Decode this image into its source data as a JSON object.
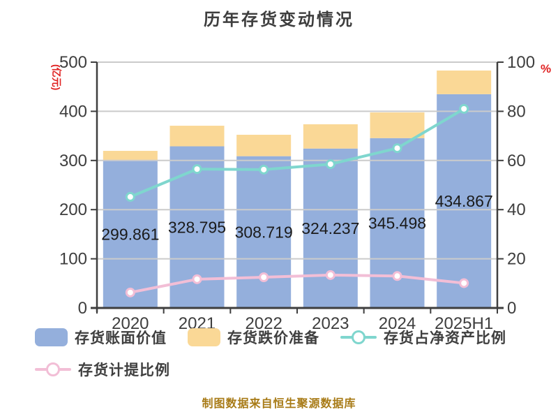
{
  "title": "历年存货变动情况",
  "footer": "制图数据来自恒生聚源数据库",
  "chart_data": {
    "type": "bar",
    "subtype": "stacked-bar-with-lines",
    "categories": [
      "2020",
      "2021",
      "2022",
      "2023",
      "2024",
      "2025H1"
    ],
    "series": [
      {
        "key": "inventory-book-value",
        "name": "存货账面价值",
        "type": "bar",
        "stack": true,
        "axis": "left",
        "color": "#94afdc",
        "values": [
          299.861,
          328.795,
          308.719,
          324.237,
          345.498,
          434.867
        ]
      },
      {
        "key": "inventory-depreciation-reserve",
        "name": "存货跌价准备",
        "type": "bar",
        "stack": true,
        "axis": "left",
        "color": "#fad896",
        "values": [
          19.7,
          41.9,
          43.6,
          49.4,
          52.2,
          48.1
        ]
      },
      {
        "key": "inventory-to-net-assets-ratio",
        "name": "存货占净资产比例",
        "type": "line",
        "axis": "right",
        "color": "#7fd6ce",
        "values": [
          45.2,
          56.5,
          56.3,
          58.5,
          65.0,
          81.0
        ]
      },
      {
        "key": "inventory-provision-ratio",
        "name": "存货计提比例",
        "type": "line",
        "axis": "right",
        "color": "#f2bed6",
        "values": [
          6.3,
          11.7,
          12.5,
          13.4,
          13.0,
          10.1
        ]
      }
    ],
    "bar_value_labels": [
      "299.861",
      "328.795",
      "308.719",
      "324.237",
      "345.498",
      "434.867"
    ],
    "left_axis": {
      "unit": "(亿元)",
      "min": 0,
      "max": 500,
      "ticks": [
        0,
        100,
        200,
        300,
        400,
        500
      ]
    },
    "right_axis": {
      "unit": "%",
      "min": 0,
      "max": 100,
      "ticks": [
        0,
        20,
        40,
        60,
        80,
        100
      ]
    },
    "grid": true,
    "legend_position": "bottom"
  },
  "colors": {
    "background": "#ffffff",
    "title": "#3e3e3e",
    "axis_text": "#3e3e3e",
    "axis_line": "#3e3e3e",
    "grid": "#cbcbcb",
    "value_label": "#1b1b1b",
    "unit_label": "#e02222",
    "legend_text": "#3f3f3f",
    "footer": "#a87b17"
  }
}
